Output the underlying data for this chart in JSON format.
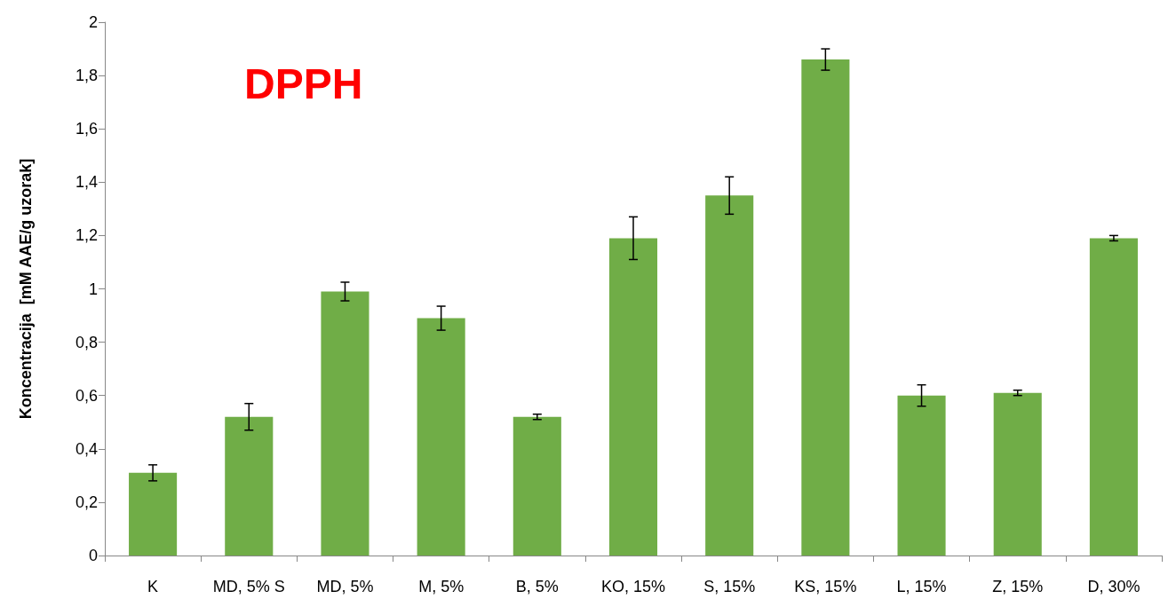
{
  "chart_data": {
    "type": "bar",
    "title": "DPPH",
    "ylabel": "Koncentracija  [mM AAE/g uzorak]",
    "categories": [
      "K",
      "MD, 5% S",
      "MD, 5%",
      "M, 5%",
      "B, 5%",
      "KO, 15%",
      "S, 15%",
      "KS, 15%",
      "L, 15%",
      "Z, 15%",
      "D, 30%"
    ],
    "values": [
      0.31,
      0.52,
      0.99,
      0.89,
      0.52,
      1.19,
      1.35,
      1.86,
      0.6,
      0.61,
      1.19
    ],
    "errors": [
      0.03,
      0.05,
      0.035,
      0.045,
      0.01,
      0.08,
      0.07,
      0.04,
      0.04,
      0.01,
      0.01
    ],
    "color": "#70ad47",
    "ylim": [
      0,
      2
    ],
    "yticks": [
      0,
      {
        "value": 0.2,
        "label": "0,2"
      },
      {
        "value": 0.4,
        "label": "0,4"
      },
      {
        "value": 0.6,
        "label": "0,6"
      },
      {
        "value": 0.8,
        "label": "0,8"
      },
      1,
      {
        "value": 1.2,
        "label": "1,2"
      },
      {
        "value": 1.4,
        "label": "1,4"
      },
      {
        "value": 1.6,
        "label": "1,6"
      },
      {
        "value": 1.8,
        "label": "1,8"
      },
      2
    ],
    "grid": false
  }
}
